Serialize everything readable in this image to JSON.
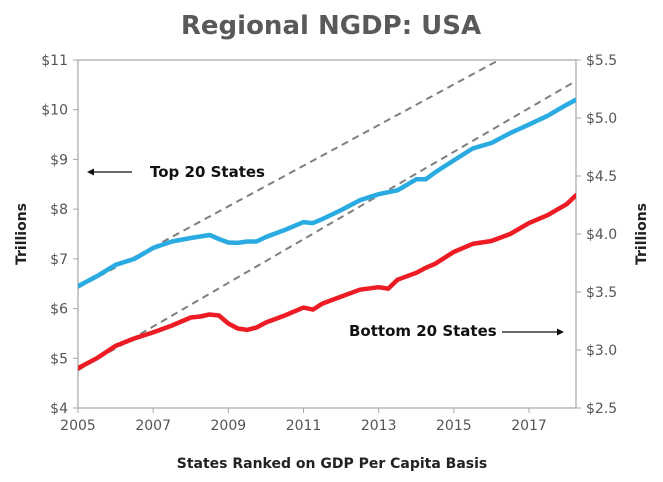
{
  "chart_data": {
    "type": "line",
    "title": "Regional NGDP: USA",
    "xlabel": "States Ranked on GDP Per Capita Basis",
    "ylabel_left": "Trillions",
    "ylabel_right": "Trillions",
    "xlim": [
      2005,
      2018.25
    ],
    "ylim_left": [
      4,
      11
    ],
    "ylim_right": [
      2.5,
      5.5
    ],
    "x_ticks": [
      "2005",
      "2007",
      "2009",
      "2011",
      "2013",
      "2015",
      "2017"
    ],
    "y_ticks_left": [
      "$4",
      "$5",
      "$6",
      "$7",
      "$8",
      "$9",
      "$10",
      "$11"
    ],
    "y_ticks_right": [
      "$2.5",
      "$3.0",
      "$3.5",
      "$4.0",
      "$4.5",
      "$5.0",
      "$5.5"
    ],
    "grid": false,
    "series": [
      {
        "name": "Top 20 States",
        "axis": "left",
        "color": "#29ABE2",
        "x": [
          2005.0,
          2005.5,
          2006.0,
          2006.5,
          2007.0,
          2007.5,
          2008.0,
          2008.5,
          2008.75,
          2009.0,
          2009.25,
          2009.5,
          2009.75,
          2010.0,
          2010.5,
          2011.0,
          2011.25,
          2011.5,
          2012.0,
          2012.5,
          2013.0,
          2013.5,
          2014.0,
          2014.25,
          2014.5,
          2015.0,
          2015.5,
          2016.0,
          2016.5,
          2017.0,
          2017.5,
          2018.0,
          2018.25
        ],
        "y": [
          6.45,
          6.65,
          6.88,
          7.0,
          7.22,
          7.35,
          7.42,
          7.48,
          7.4,
          7.33,
          7.32,
          7.35,
          7.35,
          7.44,
          7.58,
          7.74,
          7.72,
          7.8,
          7.98,
          8.18,
          8.3,
          8.38,
          8.6,
          8.6,
          8.74,
          8.98,
          9.22,
          9.33,
          9.53,
          9.7,
          9.88,
          10.1,
          10.2
        ]
      },
      {
        "name": "Bottom 20 States",
        "axis": "left",
        "color": "#ED1C24",
        "x": [
          2005.0,
          2005.5,
          2006.0,
          2006.5,
          2007.0,
          2007.5,
          2008.0,
          2008.25,
          2008.5,
          2008.75,
          2009.0,
          2009.25,
          2009.5,
          2009.75,
          2010.0,
          2010.5,
          2011.0,
          2011.25,
          2011.5,
          2012.0,
          2012.5,
          2013.0,
          2013.25,
          2013.5,
          2014.0,
          2014.25,
          2014.5,
          2015.0,
          2015.5,
          2016.0,
          2016.5,
          2017.0,
          2017.5,
          2018.0,
          2018.25
        ],
        "y": [
          4.8,
          5.0,
          5.25,
          5.4,
          5.52,
          5.66,
          5.82,
          5.84,
          5.88,
          5.86,
          5.7,
          5.6,
          5.57,
          5.62,
          5.72,
          5.86,
          6.02,
          5.98,
          6.1,
          6.24,
          6.38,
          6.43,
          6.4,
          6.58,
          6.72,
          6.82,
          6.9,
          7.14,
          7.3,
          7.36,
          7.5,
          7.72,
          7.88,
          8.1,
          8.28
        ]
      }
    ],
    "trend_lines": [
      {
        "style": "dashed",
        "color": "#7F7F7F",
        "x": [
          2005.0,
          2016.2
        ],
        "y": [
          6.42,
          11.0
        ]
      },
      {
        "style": "dashed",
        "color": "#7F7F7F",
        "x": [
          2005.0,
          2018.25
        ],
        "y": [
          4.76,
          10.58
        ]
      }
    ],
    "annotations": [
      {
        "text": "Top 20 States",
        "arrow": "left"
      },
      {
        "text": "Bottom 20 States",
        "arrow": "right"
      }
    ]
  }
}
